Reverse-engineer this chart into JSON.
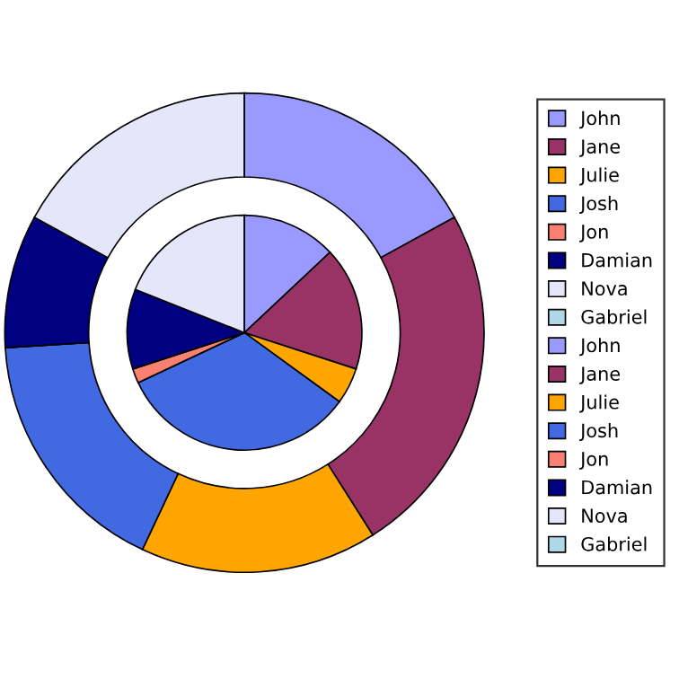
{
  "chart_data": {
    "type": "donut",
    "categories": [
      "John",
      "Jane",
      "Julie",
      "Josh",
      "Jon",
      "Damian",
      "Nova",
      "Gabriel"
    ],
    "colors": [
      "#9999ff",
      "#993366",
      "#ffa500",
      "#4169e1",
      "#fa8072",
      "#000080",
      "#e6e6fa",
      "#add8e6"
    ],
    "series": [
      {
        "values": [
          13,
          17,
          5,
          33,
          2,
          11,
          19,
          0
        ]
      },
      {
        "values": [
          17,
          24,
          16,
          17,
          0,
          9,
          17,
          0
        ]
      }
    ],
    "legend": "right"
  }
}
